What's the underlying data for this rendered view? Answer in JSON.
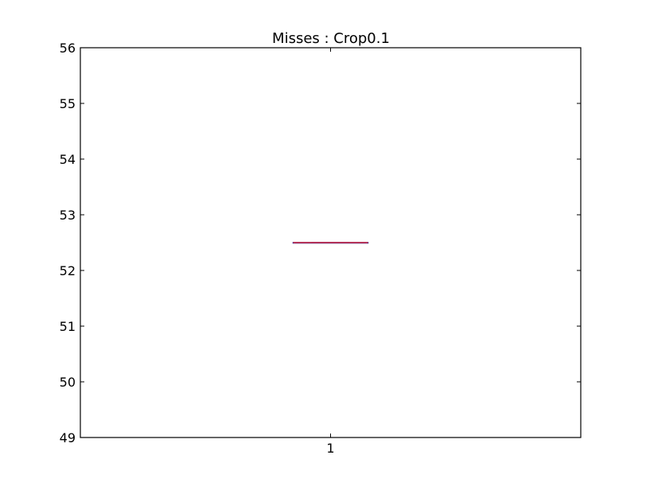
{
  "chart_data": {
    "type": "boxplot",
    "title": "Misses : Crop0.1",
    "xlabel": "",
    "ylabel": "",
    "categories": [
      "1"
    ],
    "ylim": [
      49,
      56
    ],
    "yticks": [
      49,
      50,
      51,
      52,
      53,
      54,
      55,
      56
    ],
    "grid": false,
    "boxes": [
      {
        "category": "1",
        "min": 52.5,
        "q1": 52.5,
        "median": 52.5,
        "q3": 52.5,
        "max": 52.5
      }
    ],
    "colors": {
      "box": "#2c2ca0",
      "median": "#c8324b",
      "axes": "#000000"
    }
  }
}
